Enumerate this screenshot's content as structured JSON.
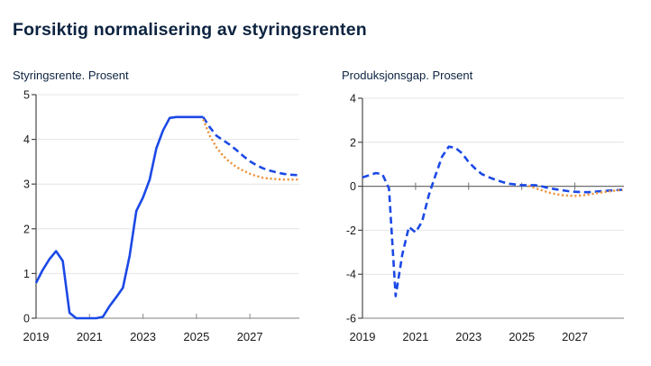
{
  "header": {
    "title": "Forsiktig normalisering av styringsrenten"
  },
  "colors": {
    "line_blue": "#1b49e6",
    "line_orange": "#ec953d",
    "title_navy": "#0c2340",
    "gridline": "#e4e4e4",
    "axis": "#9b9b9b",
    "y_axis": "#4a4a4a",
    "zero_line": "#6e6e6e",
    "tick_label": "#1a1a1a"
  },
  "chart_data": [
    {
      "type": "line",
      "title": "Styringsrente. Prosent",
      "xlabel": "",
      "ylabel": "Prosent",
      "xlim": [
        2019,
        2028.85
      ],
      "ylim": [
        0,
        5
      ],
      "xticks": [
        2019,
        2021,
        2023,
        2025,
        2027
      ],
      "yticks": [
        0,
        1,
        2,
        3,
        4,
        5
      ],
      "gridlines": [
        1,
        2,
        3,
        4,
        5
      ],
      "zero_line": false,
      "legend": "none",
      "series": [
        {
          "name": "styringsrente-historisk",
          "style": "solid",
          "color": "#1b49e6",
          "points": [
            [
              2019,
              0.79
            ],
            [
              2019.25,
              1.08
            ],
            [
              2019.5,
              1.32
            ],
            [
              2019.75,
              1.5
            ],
            [
              2020,
              1.28
            ],
            [
              2020.25,
              0.12
            ],
            [
              2020.5,
              0
            ],
            [
              2020.75,
              0
            ],
            [
              2021,
              0
            ],
            [
              2021.25,
              0
            ],
            [
              2021.5,
              0.03
            ],
            [
              2021.75,
              0.27
            ],
            [
              2022,
              0.47
            ],
            [
              2022.25,
              0.68
            ],
            [
              2022.5,
              1.4
            ],
            [
              2022.75,
              2.4
            ],
            [
              2023,
              2.7
            ],
            [
              2023.25,
              3.1
            ],
            [
              2023.5,
              3.8
            ],
            [
              2023.75,
              4.2
            ],
            [
              2024,
              4.48
            ],
            [
              2024.25,
              4.5
            ],
            [
              2024.5,
              4.5
            ],
            [
              2024.75,
              4.5
            ],
            [
              2025,
              4.5
            ],
            [
              2025.25,
              4.5
            ]
          ]
        },
        {
          "name": "styringsrente-prognose",
          "style": "dashed",
          "color": "#1b49e6",
          "points": [
            [
              2025.25,
              4.5
            ],
            [
              2025.5,
              4.27
            ],
            [
              2025.75,
              4.08
            ],
            [
              2026,
              3.98
            ],
            [
              2026.25,
              3.88
            ],
            [
              2026.5,
              3.76
            ],
            [
              2026.75,
              3.63
            ],
            [
              2027,
              3.51
            ],
            [
              2027.25,
              3.42
            ],
            [
              2027.5,
              3.35
            ],
            [
              2027.75,
              3.3
            ],
            [
              2028,
              3.26
            ],
            [
              2028.25,
              3.23
            ],
            [
              2028.5,
              3.21
            ],
            [
              2028.8,
              3.2
            ]
          ]
        },
        {
          "name": "styringsrente-forrige-prognose",
          "style": "dotted",
          "color": "#ec953d",
          "points": [
            [
              2025.25,
              4.45
            ],
            [
              2025.5,
              4.08
            ],
            [
              2025.75,
              3.82
            ],
            [
              2026,
              3.63
            ],
            [
              2026.25,
              3.49
            ],
            [
              2026.5,
              3.38
            ],
            [
              2026.75,
              3.3
            ],
            [
              2027,
              3.23
            ],
            [
              2027.25,
              3.18
            ],
            [
              2027.5,
              3.14
            ],
            [
              2027.75,
              3.12
            ],
            [
              2028,
              3.11
            ],
            [
              2028.25,
              3.1
            ],
            [
              2028.5,
              3.1
            ],
            [
              2028.8,
              3.1
            ]
          ]
        }
      ]
    },
    {
      "type": "line",
      "title": "Produksjonsgap. Prosent",
      "xlabel": "",
      "ylabel": "Prosent",
      "xlim": [
        2019,
        2028.85
      ],
      "ylim": [
        -6,
        4
      ],
      "xticks": [
        2019,
        2021,
        2023,
        2025,
        2027
      ],
      "yticks": [
        -6,
        -4,
        -2,
        0,
        2,
        4
      ],
      "gridlines": [
        -4,
        -2,
        2,
        4
      ],
      "zero_line": true,
      "legend": "none",
      "series": [
        {
          "name": "produksjonsgap",
          "style": "dashed",
          "color": "#1b49e6",
          "points": [
            [
              2019,
              0.4
            ],
            [
              2019.25,
              0.5
            ],
            [
              2019.5,
              0.6
            ],
            [
              2019.75,
              0.55
            ],
            [
              2020,
              -0.1
            ],
            [
              2020.25,
              -5
            ],
            [
              2020.5,
              -3.1
            ],
            [
              2020.75,
              -1.85
            ],
            [
              2021,
              -2.1
            ],
            [
              2021.25,
              -1.6
            ],
            [
              2021.5,
              -0.4
            ],
            [
              2021.75,
              0.5
            ],
            [
              2022,
              1.35
            ],
            [
              2022.25,
              1.8
            ],
            [
              2022.5,
              1.75
            ],
            [
              2022.75,
              1.5
            ],
            [
              2023,
              1.1
            ],
            [
              2023.25,
              0.8
            ],
            [
              2023.5,
              0.55
            ],
            [
              2023.75,
              0.42
            ],
            [
              2024,
              0.3
            ],
            [
              2024.25,
              0.2
            ],
            [
              2024.5,
              0.12
            ],
            [
              2024.75,
              0.08
            ],
            [
              2025,
              0.05
            ],
            [
              2025.25,
              0.05
            ],
            [
              2025.5,
              0.05
            ],
            [
              2025.75,
              0
            ],
            [
              2026,
              -0.08
            ],
            [
              2026.25,
              -0.13
            ],
            [
              2026.5,
              -0.18
            ],
            [
              2026.75,
              -0.22
            ],
            [
              2027,
              -0.25
            ],
            [
              2027.25,
              -0.27
            ],
            [
              2027.5,
              -0.27
            ],
            [
              2027.75,
              -0.25
            ],
            [
              2028,
              -0.22
            ],
            [
              2028.25,
              -0.2
            ],
            [
              2028.5,
              -0.18
            ],
            [
              2028.8,
              -0.16
            ]
          ]
        },
        {
          "name": "produksjonsgap-forrige-prognose",
          "style": "dotted",
          "color": "#ec953d",
          "points": [
            [
              2025.25,
              0.02
            ],
            [
              2025.5,
              -0.08
            ],
            [
              2025.75,
              -0.18
            ],
            [
              2026,
              -0.28
            ],
            [
              2026.25,
              -0.35
            ],
            [
              2026.5,
              -0.4
            ],
            [
              2026.75,
              -0.43
            ],
            [
              2027,
              -0.44
            ],
            [
              2027.25,
              -0.42
            ],
            [
              2027.5,
              -0.38
            ],
            [
              2027.75,
              -0.33
            ],
            [
              2028,
              -0.28
            ],
            [
              2028.25,
              -0.24
            ],
            [
              2028.5,
              -0.2
            ],
            [
              2028.8,
              -0.17
            ]
          ]
        }
      ]
    }
  ]
}
